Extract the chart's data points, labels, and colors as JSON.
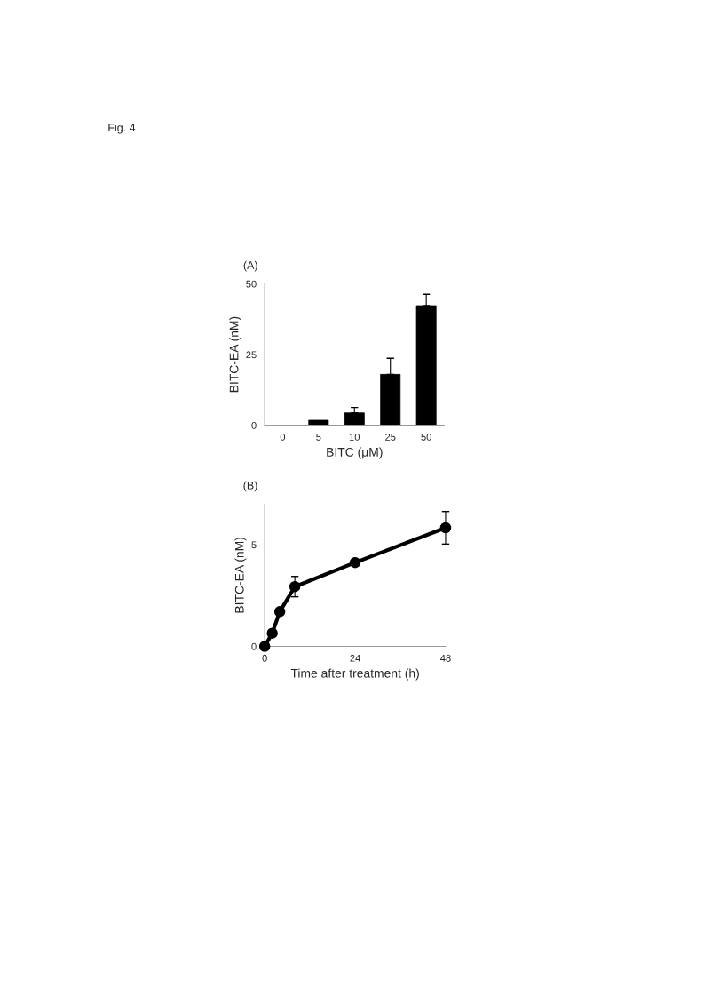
{
  "chart_data": [
    {
      "type": "bar",
      "title": "(A)",
      "annotations": [
        "Fig. 4"
      ],
      "xlabel": "BITC (μM)",
      "ylabel": "BITC-EA (nM)",
      "categories": [
        "0",
        "5",
        "10",
        "25",
        "50"
      ],
      "series": [
        {
          "color": "#000000",
          "values": [
            0,
            1.8,
            4.4,
            18.0,
            42.3
          ],
          "errors": [
            null,
            null,
            1.9,
            5.7,
            4.0
          ]
        }
      ],
      "ylim": [
        0,
        50
      ],
      "yticks": [
        0,
        25,
        50
      ],
      "grid": false
    },
    {
      "type": "line",
      "title": "(B)",
      "xlabel": "Time after treatment (h)",
      "ylabel": "BITC-EA (nM)",
      "x": [
        0,
        2,
        4,
        8,
        24,
        48
      ],
      "series": [
        {
          "color": "#000000",
          "values": [
            0,
            0.65,
            1.71,
            2.94,
            4.12,
            5.83
          ],
          "errors": [
            null,
            null,
            null,
            0.5,
            null,
            0.8
          ]
        }
      ],
      "xlim": [
        0,
        48
      ],
      "xticks": [
        0,
        24,
        48
      ],
      "ylim": [
        0,
        7
      ],
      "yticks": [
        0,
        5
      ],
      "marker": "circle",
      "line_style": "solid",
      "grid": false
    }
  ]
}
